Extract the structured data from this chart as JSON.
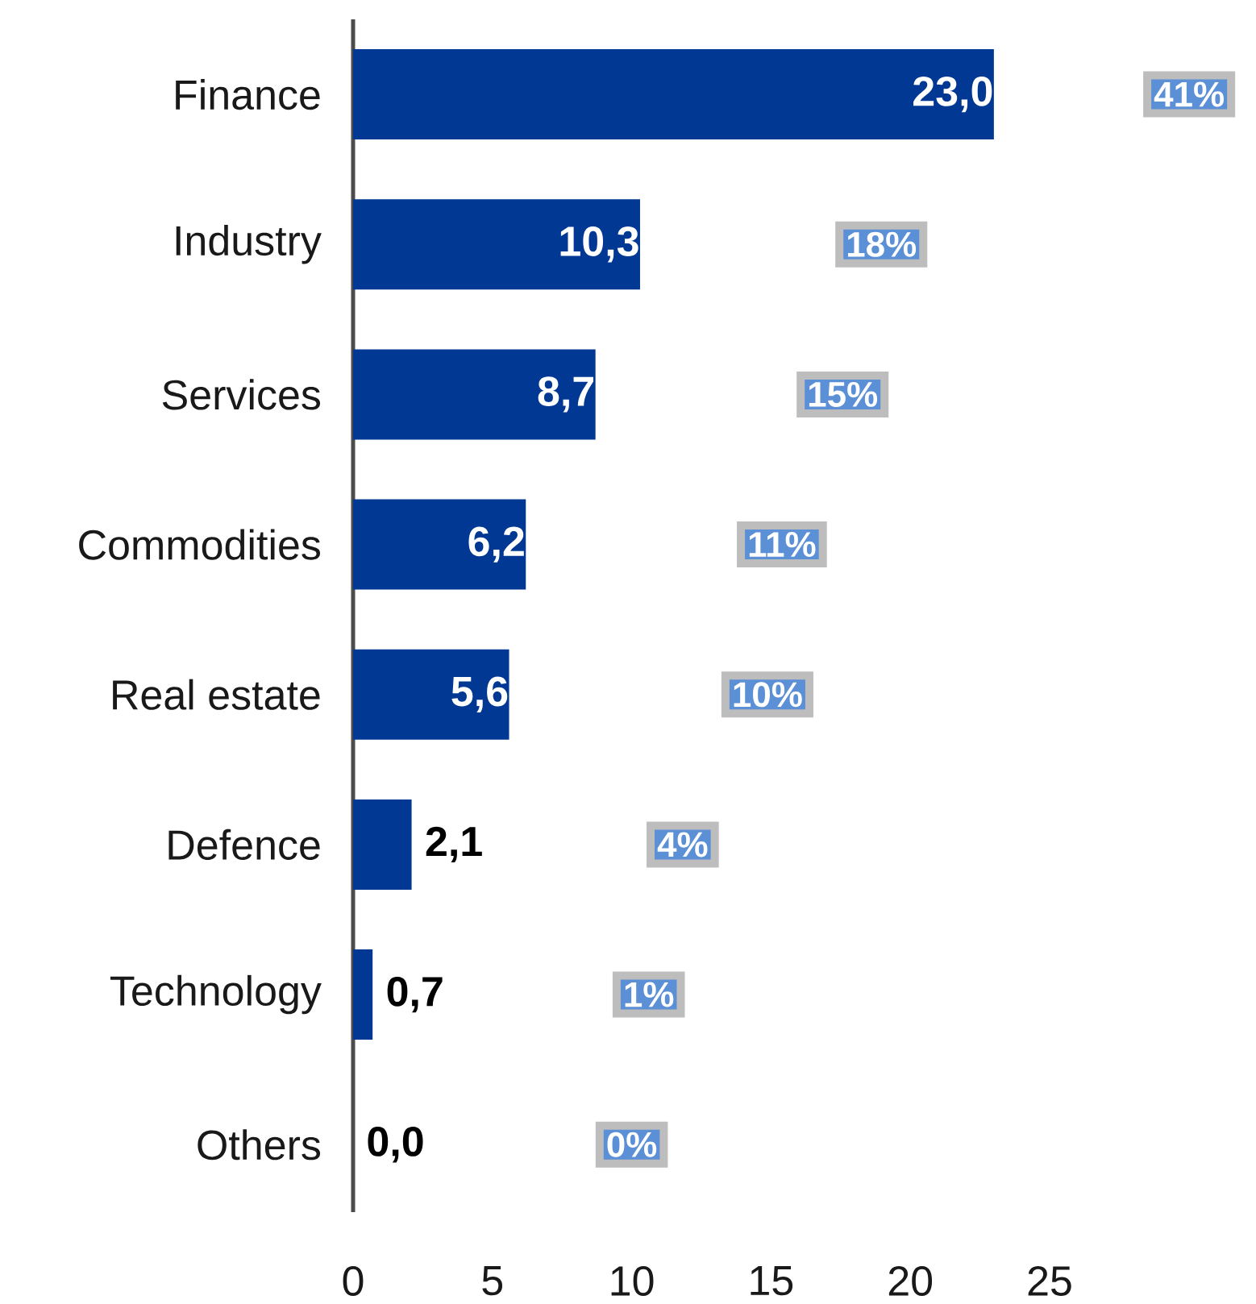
{
  "chart_data": {
    "type": "bar",
    "orientation": "horizontal",
    "categories": [
      "Finance",
      "Industry",
      "Services",
      "Commodities",
      "Real estate",
      "Defence",
      "Technology",
      "Others"
    ],
    "values": [
      23.0,
      10.3,
      8.7,
      6.2,
      5.6,
      2.1,
      0.7,
      0.0
    ],
    "value_labels": [
      "23,0",
      "10,3",
      "8,7",
      "6,2",
      "5,6",
      "2,1",
      "0,7",
      "0,0"
    ],
    "color": "#003893",
    "xlim": [
      0,
      25
    ],
    "xticks": [
      0,
      5,
      10,
      15,
      20,
      25
    ],
    "grid": false,
    "annotations": [
      "41%",
      "18%",
      "15%",
      "11%",
      "10%",
      "4%",
      "1%",
      "0%"
    ]
  }
}
